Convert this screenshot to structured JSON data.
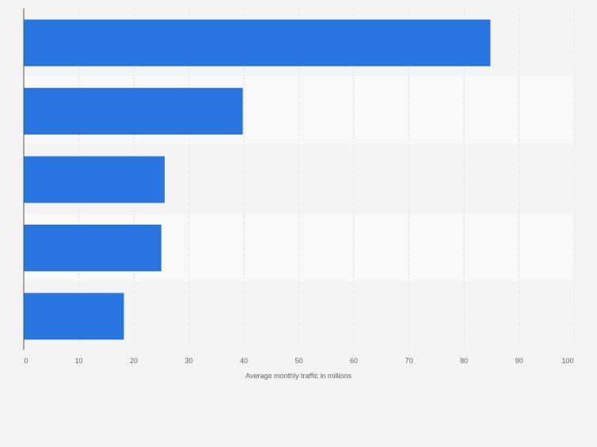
{
  "chart_data": {
    "type": "bar",
    "orientation": "horizontal",
    "categories": [
      "",
      "",
      "",
      "",
      ""
    ],
    "values": [
      84.8,
      39.8,
      25.6,
      25.0,
      18.2
    ],
    "title": "",
    "xlabel": "Average monthly traffic in millions",
    "ylabel": "",
    "xlim": [
      0,
      100
    ],
    "ticks": [
      "0",
      "10",
      "20",
      "30",
      "40",
      "50",
      "60",
      "70",
      "80",
      "90",
      "100"
    ],
    "grid": true,
    "legend": "none",
    "colors": {
      "bar": "#2776df",
      "band_light": "#f9f9f9",
      "band_dark": "#f3f3f3",
      "grid": "#dcdcdc",
      "axis": "#555555",
      "text": "#666666"
    }
  }
}
